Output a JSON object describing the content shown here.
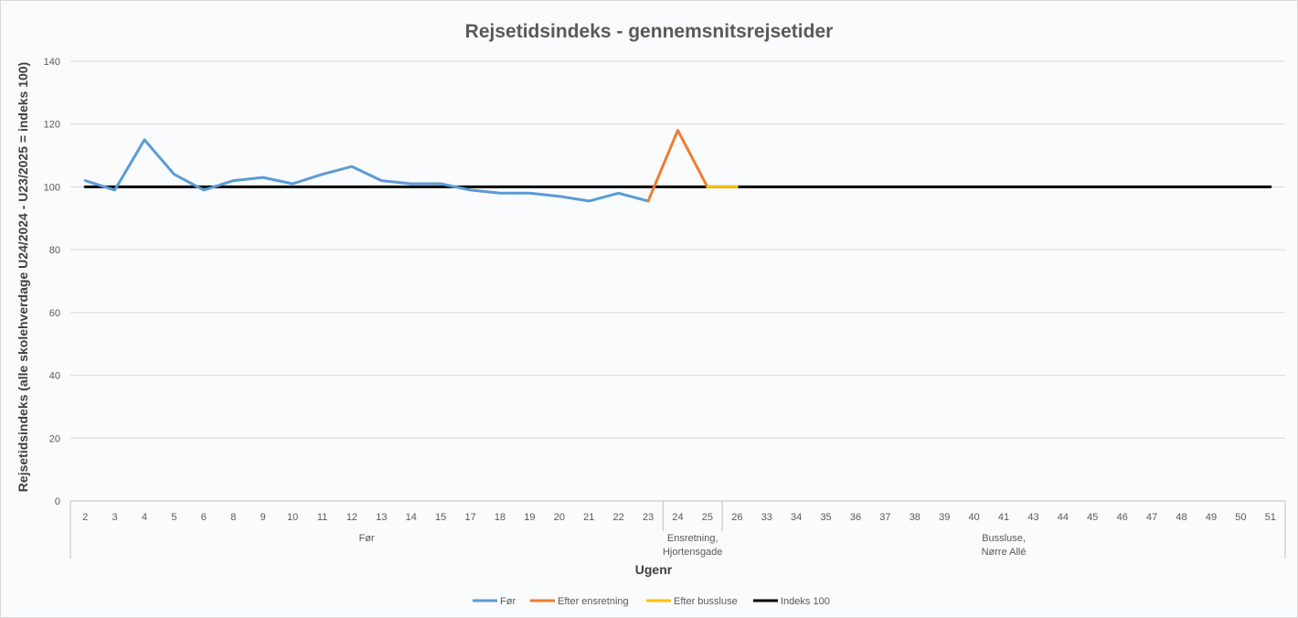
{
  "chart_data": {
    "type": "line",
    "title": "Rejsetidsindeks - gennemsnitsrejsetider",
    "xlabel": "Ugenr",
    "ylabel": "Rejsetidsindeks (alle skolehverdage U24/2024 - U23/2025 = indeks 100)",
    "ylim": [
      0,
      140
    ],
    "yticks": [
      0,
      20,
      40,
      60,
      80,
      100,
      120,
      140
    ],
    "grid": true,
    "legend_position": "bottom",
    "categories": [
      "2",
      "3",
      "4",
      "5",
      "6",
      "8",
      "9",
      "10",
      "11",
      "12",
      "13",
      "14",
      "15",
      "17",
      "18",
      "19",
      "20",
      "21",
      "22",
      "23",
      "24",
      "25",
      "26",
      "33",
      "34",
      "35",
      "36",
      "37",
      "38",
      "39",
      "40",
      "41",
      "43",
      "44",
      "45",
      "46",
      "47",
      "48",
      "49",
      "50",
      "51"
    ],
    "groups": [
      {
        "label": "Før",
        "start": 0,
        "end": 19
      },
      {
        "label": "Ensretning, Hjortensgade",
        "lines": [
          "Ensretning,",
          "Hjortensgade"
        ],
        "start": 20,
        "end": 21
      },
      {
        "label": "Bussluse, Nørre Allé",
        "lines": [
          "Bussluse,",
          "Nørre Allé"
        ],
        "start": 22,
        "end": 40
      }
    ],
    "series": [
      {
        "name": "Før",
        "color": "#5b9bd5",
        "values": [
          102,
          99,
          115,
          104,
          99,
          102,
          103,
          101,
          104,
          106.5,
          102,
          101,
          101,
          99,
          98,
          98,
          97,
          95.5,
          98,
          95.5,
          null,
          null,
          null,
          null,
          null,
          null,
          null,
          null,
          null,
          null,
          null,
          null,
          null,
          null,
          null,
          null,
          null,
          null,
          null,
          null,
          null
        ]
      },
      {
        "name": "Efter ensretning",
        "color": "#ed7d31",
        "values": [
          null,
          null,
          null,
          null,
          null,
          null,
          null,
          null,
          null,
          null,
          null,
          null,
          null,
          null,
          null,
          null,
          null,
          null,
          null,
          95.5,
          118,
          100,
          null,
          null,
          null,
          null,
          null,
          null,
          null,
          null,
          null,
          null,
          null,
          null,
          null,
          null,
          null,
          null,
          null,
          null,
          null
        ]
      },
      {
        "name": "Efter bussluse",
        "color": "#ffc000",
        "values": [
          null,
          null,
          null,
          null,
          null,
          null,
          null,
          null,
          null,
          null,
          null,
          null,
          null,
          null,
          null,
          null,
          null,
          null,
          null,
          null,
          null,
          100,
          100,
          null,
          null,
          null,
          null,
          null,
          null,
          null,
          null,
          null,
          null,
          null,
          null,
          null,
          null,
          null,
          null,
          null,
          null
        ]
      },
      {
        "name": "Indeks 100",
        "color": "#000000",
        "values": [
          100,
          100,
          100,
          100,
          100,
          100,
          100,
          100,
          100,
          100,
          100,
          100,
          100,
          100,
          100,
          100,
          100,
          100,
          100,
          100,
          100,
          100,
          100,
          100,
          100,
          100,
          100,
          100,
          100,
          100,
          100,
          100,
          100,
          100,
          100,
          100,
          100,
          100,
          100,
          100,
          100
        ]
      }
    ]
  }
}
